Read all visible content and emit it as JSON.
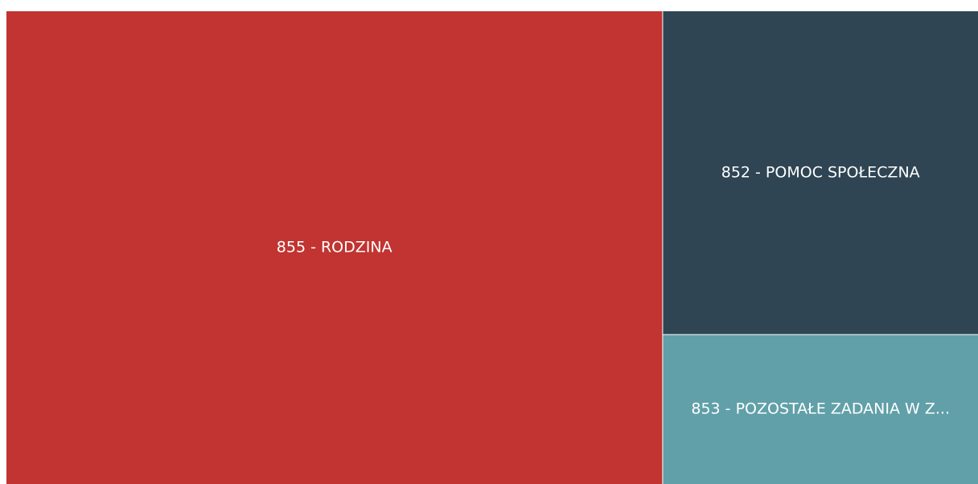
{
  "chart_data": {
    "type": "treemap",
    "categories": [
      "855 - RODZINA",
      "852 - POMOC SPOŁECZNA",
      "853 - POZOSTAŁE ZADANIA W Z..."
    ],
    "values": [
      67.5,
      22.2,
      10.3
    ],
    "colors": [
      "#c13431",
      "#2f4554",
      "#61a0a8"
    ]
  }
}
